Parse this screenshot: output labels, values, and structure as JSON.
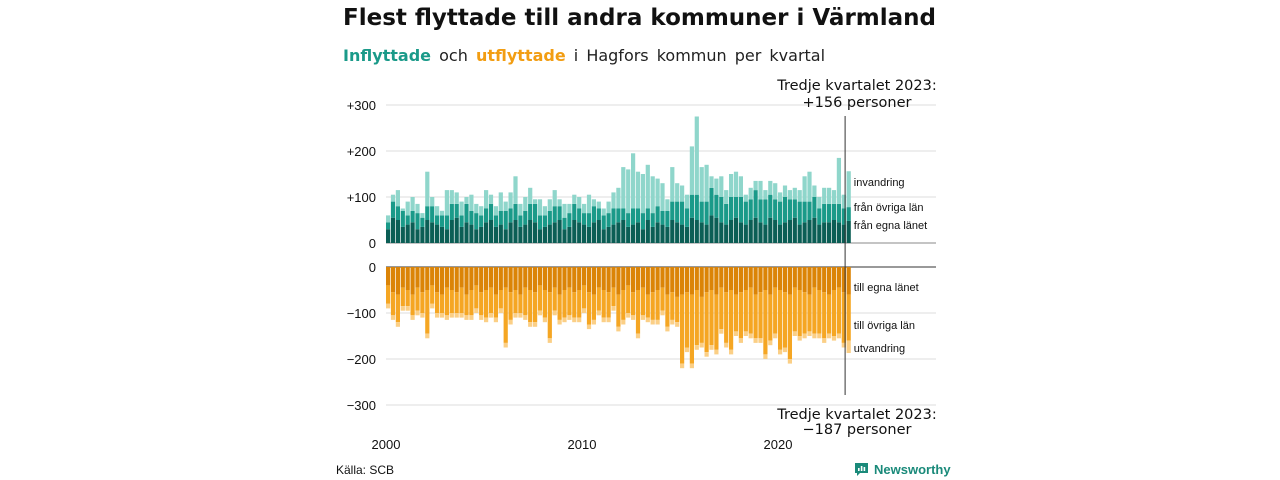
{
  "header": {
    "title": "Flest flyttade till andra kommuner i Värmland",
    "subtitle_in": "Inflyttade",
    "subtitle_and": "och",
    "subtitle_out": "utflyttade",
    "subtitle_rest": "i Hagfors kommun per kvartal"
  },
  "annotations": {
    "in_line1": "Tredje kvartalet 2023:",
    "in_line2": "+156 personer",
    "out_line1": "Tredje kvartalet 2023:",
    "out_line2": "−187 personer"
  },
  "footer": {
    "source": "Källa: SCB",
    "logo": "Newsworthy"
  },
  "colors": {
    "in_county": "#0b5e55",
    "in_other": "#1a9a89",
    "in_abroad": "#8fd6cb",
    "out_county": "#db8407",
    "out_other": "#f5a623",
    "out_abroad": "#fbcf86",
    "grid": "#dddddd"
  },
  "chart_data": {
    "type": "bar",
    "stacked": true,
    "x_start": "2000 Q1",
    "x_end": "2023 Q3",
    "x_unit": "quarter",
    "xticks": [
      "2000",
      "2010",
      "2020"
    ],
    "yticks": [
      "+300",
      "+200",
      "+100",
      "0",
      "0",
      "−100",
      "−200",
      "−300"
    ],
    "ylim_in": [
      0,
      300
    ],
    "ylim_out": [
      -300,
      0
    ],
    "series": [
      {
        "name": "från egna länet",
        "group": "in",
        "values": [
          30,
          55,
          50,
          35,
          40,
          45,
          30,
          35,
          50,
          45,
          40,
          35,
          30,
          50,
          55,
          35,
          45,
          40,
          30,
          35,
          45,
          50,
          35,
          40,
          30,
          45,
          50,
          35,
          40,
          50,
          45,
          30,
          35,
          40,
          45,
          50,
          30,
          35,
          50,
          45,
          40,
          35,
          45,
          50,
          30,
          35,
          40,
          45,
          50,
          35,
          40,
          45,
          30,
          50,
          35,
          45,
          40,
          35,
          50,
          45,
          40,
          35,
          55,
          50,
          45,
          40,
          60,
          55,
          45,
          40,
          50,
          55,
          45,
          40,
          50,
          55,
          45,
          40,
          55,
          50,
          40,
          45,
          50,
          55,
          40,
          45,
          50,
          55,
          40,
          45,
          45,
          50,
          45,
          40,
          48
        ]
      },
      {
        "name": "från övriga län",
        "group": "in",
        "values": [
          15,
          35,
          30,
          35,
          20,
          25,
          35,
          20,
          30,
          35,
          20,
          25,
          30,
          35,
          30,
          25,
          40,
          30,
          35,
          25,
          30,
          35,
          25,
          30,
          40,
          30,
          35,
          25,
          30,
          35,
          40,
          30,
          25,
          30,
          35,
          30,
          25,
          30,
          35,
          30,
          25,
          30,
          35,
          25,
          30,
          30,
          35,
          30,
          25,
          30,
          35,
          30,
          35,
          25,
          30,
          35,
          30,
          35,
          40,
          45,
          50,
          40,
          50,
          55,
          45,
          50,
          60,
          50,
          55,
          45,
          50,
          45,
          55,
          50,
          45,
          60,
          50,
          55,
          50,
          45,
          50,
          55,
          45,
          40,
          50,
          45,
          40,
          45,
          35,
          40,
          40,
          35,
          40,
          35,
          30
        ]
      },
      {
        "name": "invandring",
        "group": "in",
        "values": [
          15,
          15,
          35,
          5,
          30,
          30,
          20,
          10,
          75,
          20,
          20,
          10,
          55,
          30,
          25,
          30,
          15,
          35,
          20,
          20,
          40,
          20,
          20,
          40,
          20,
          35,
          60,
          25,
          30,
          35,
          10,
          35,
          20,
          25,
          35,
          15,
          30,
          20,
          20,
          25,
          20,
          40,
          15,
          15,
          15,
          25,
          35,
          45,
          90,
          95,
          120,
          80,
          85,
          95,
          80,
          60,
          60,
          25,
          75,
          40,
          35,
          30,
          105,
          170,
          75,
          80,
          25,
          35,
          45,
          30,
          50,
          55,
          45,
          15,
          25,
          20,
          40,
          20,
          30,
          35,
          20,
          25,
          20,
          25,
          25,
          55,
          65,
          25,
          25,
          35,
          35,
          30,
          100,
          30,
          78
        ]
      },
      {
        "name": "till egna länet",
        "group": "out",
        "values": [
          -40,
          -55,
          -60,
          -45,
          -50,
          -60,
          -45,
          -55,
          -50,
          -40,
          -55,
          -60,
          -45,
          -50,
          -55,
          -45,
          -60,
          -50,
          -40,
          -55,
          -50,
          -45,
          -60,
          -50,
          -45,
          -55,
          -50,
          -60,
          -45,
          -50,
          -55,
          -40,
          -50,
          -55,
          -45,
          -60,
          -50,
          -45,
          -55,
          -50,
          -40,
          -55,
          -60,
          -45,
          -50,
          -55,
          -45,
          -60,
          -50,
          -40,
          -55,
          -50,
          -45,
          -60,
          -55,
          -50,
          -45,
          -60,
          -55,
          -65,
          -60,
          -55,
          -60,
          -50,
          -65,
          -55,
          -50,
          -60,
          -45,
          -55,
          -50,
          -60,
          -55,
          -50,
          -45,
          -60,
          -55,
          -50,
          -60,
          -45,
          -50,
          -55,
          -60,
          -45,
          -50,
          -55,
          -60,
          -45,
          -50,
          -55,
          -60,
          -50,
          -45,
          -55,
          -60
        ]
      },
      {
        "name": "till övriga län",
        "group": "out",
        "values": [
          -40,
          -50,
          -60,
          -40,
          -35,
          -45,
          -50,
          -45,
          -95,
          -40,
          -45,
          -40,
          -60,
          -50,
          -45,
          -55,
          -45,
          -55,
          -50,
          -50,
          -60,
          -55,
          -50,
          -40,
          -120,
          -60,
          -50,
          -40,
          -60,
          -70,
          -65,
          -55,
          -60,
          -100,
          -50,
          -55,
          -60,
          -60,
          -55,
          -60,
          -50,
          -70,
          -55,
          -50,
          -60,
          -55,
          -40,
          -70,
          -65,
          -60,
          -50,
          -95,
          -60,
          -50,
          -60,
          -65,
          -50,
          -70,
          -60,
          -55,
          -150,
          -120,
          -150,
          -120,
          -100,
          -130,
          -120,
          -120,
          -90,
          -110,
          -130,
          -80,
          -100,
          -90,
          -100,
          -95,
          -100,
          -140,
          -100,
          -100,
          -130,
          -120,
          -140,
          -95,
          -100,
          -90,
          -80,
          -100,
          -95,
          -100,
          -85,
          -100,
          -100,
          -110,
          -100
        ]
      },
      {
        "name": "utvandring",
        "group": "out",
        "values": [
          -10,
          -10,
          -10,
          -10,
          -10,
          -10,
          -10,
          -10,
          -10,
          -10,
          -10,
          -10,
          -10,
          -10,
          -10,
          -10,
          -10,
          -10,
          -10,
          -10,
          -10,
          -10,
          -10,
          -10,
          -10,
          -10,
          -10,
          -10,
          -10,
          -10,
          -10,
          -10,
          -10,
          -10,
          -10,
          -10,
          -10,
          -10,
          -10,
          -10,
          -10,
          -10,
          -10,
          -10,
          -10,
          -10,
          -10,
          -10,
          -10,
          -10,
          -10,
          -10,
          -10,
          -10,
          -10,
          -10,
          -10,
          -10,
          -10,
          -10,
          -10,
          -10,
          -10,
          -10,
          -10,
          -10,
          -10,
          -10,
          -10,
          -10,
          -10,
          -10,
          -10,
          -10,
          -10,
          -10,
          -10,
          -10,
          -10,
          -10,
          -10,
          -10,
          -10,
          -10,
          -10,
          -10,
          -10,
          -10,
          -10,
          -10,
          -10,
          -10,
          -10,
          -10,
          -27
        ]
      }
    ]
  }
}
